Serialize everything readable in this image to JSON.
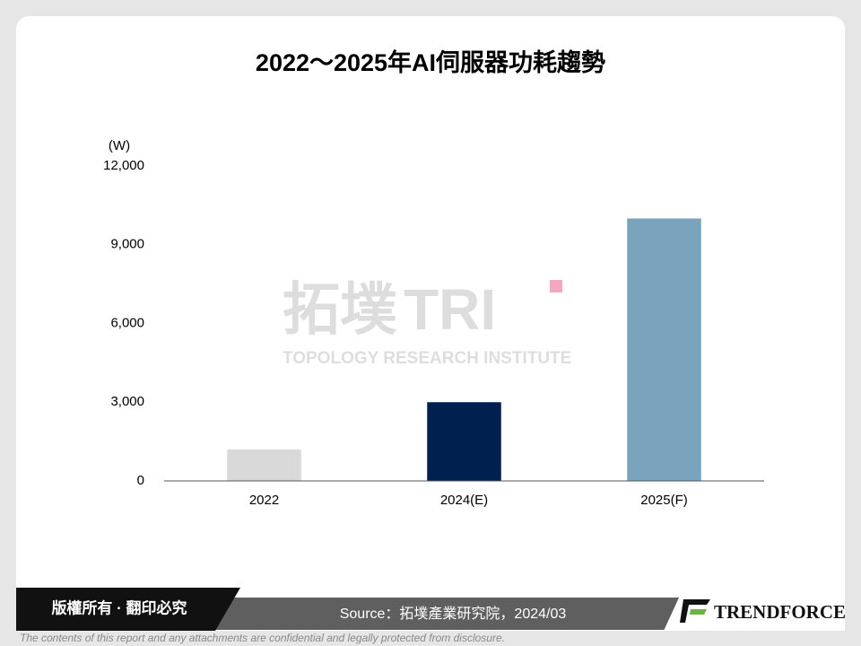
{
  "chart_data": {
    "type": "bar",
    "title": "2022～2025年AI伺服器功耗趨勢",
    "y_label": "(W)",
    "categories": [
      "2022",
      "2024(E)",
      "2025(F)"
    ],
    "values": [
      1200,
      3000,
      10000
    ],
    "colors": [
      "#d9d9d9",
      "#00204f",
      "#7aa3bd"
    ],
    "ylim": [
      0,
      12000
    ],
    "yticks": [
      0,
      {
        "value": 3000,
        "label": "3,000"
      },
      {
        "value": 6000,
        "label": "6,000"
      },
      {
        "value": 9000,
        "label": "9,000"
      },
      {
        "value": 12000,
        "label": "12,000"
      }
    ],
    "grid": false
  },
  "watermark": {
    "name": "拓墣",
    "abbr": "TRI",
    "subtitle": "TOPOLOGY RESEARCH INSTITUTE"
  },
  "footer": {
    "copyright": "版權所有 · 翻印必究",
    "source": "Source：拓墣產業研究院，2024/03",
    "logo": "TRENDFORCE",
    "disclaimer": "The contents of this report and any attachments are confidential and legally protected from disclosure."
  }
}
